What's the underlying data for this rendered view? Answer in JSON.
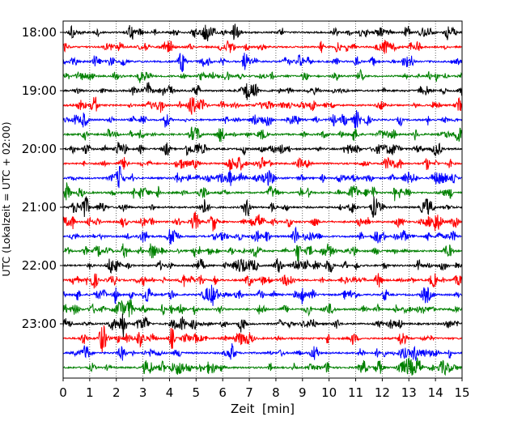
{
  "chart_data": {
    "type": "line",
    "title": "",
    "xlabel": "Zeit  [min]",
    "ylabel": "UTC (Lokalzeit = UTC + 02:00)",
    "xlim": [
      0,
      15
    ],
    "x_ticks": [
      "0",
      "1",
      "2",
      "3",
      "4",
      "5",
      "6",
      "7",
      "8",
      "9",
      "10",
      "11",
      "12",
      "13",
      "14",
      "15"
    ],
    "y_ticks": [
      "18:00",
      "19:00",
      "20:00",
      "21:00",
      "22:00",
      "23:00"
    ],
    "grid": "vertical dotted",
    "trace_interval_min": 15,
    "trace_start_utc": "18:00",
    "trace_count": 24,
    "trace_colors": [
      "#000000",
      "#ff0000",
      "#0000ff",
      "#008000"
    ],
    "series": [
      {
        "start": "18:00"
      },
      {
        "start": "18:15"
      },
      {
        "start": "18:30"
      },
      {
        "start": "18:45"
      },
      {
        "start": "19:00"
      },
      {
        "start": "19:15"
      },
      {
        "start": "19:30"
      },
      {
        "start": "19:45"
      },
      {
        "start": "20:00"
      },
      {
        "start": "20:15"
      },
      {
        "start": "20:30"
      },
      {
        "start": "20:45"
      },
      {
        "start": "21:00"
      },
      {
        "start": "21:15"
      },
      {
        "start": "21:30"
      },
      {
        "start": "21:45"
      },
      {
        "start": "22:00"
      },
      {
        "start": "22:15"
      },
      {
        "start": "22:30"
      },
      {
        "start": "22:45"
      },
      {
        "start": "23:00"
      },
      {
        "start": "23:15"
      },
      {
        "start": "23:30"
      },
      {
        "start": "23:45"
      }
    ]
  }
}
